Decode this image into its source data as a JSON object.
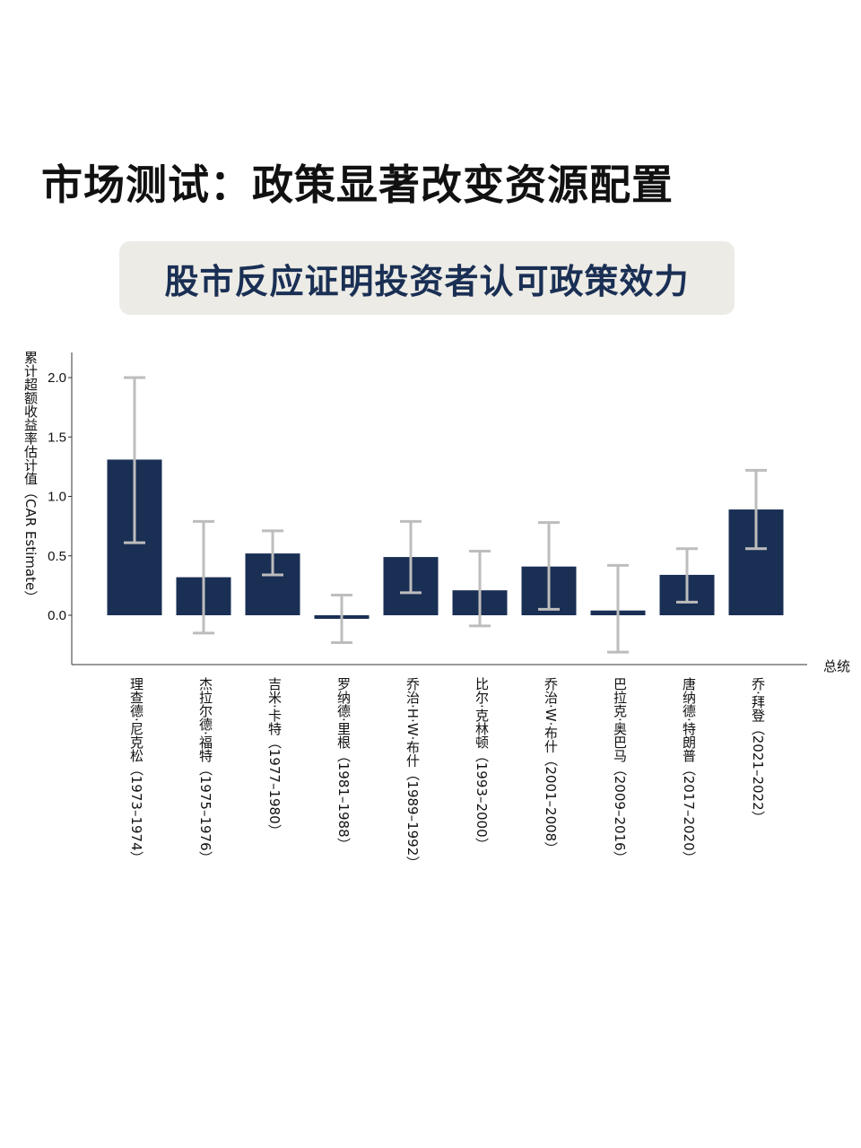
{
  "header": {
    "headline": "市场测试：政策显著改变资源配置",
    "subtitle": "股市反应证明投资者认可政策效力"
  },
  "colors": {
    "bar": "#1a2f54",
    "error_bar": "#bdbdbd",
    "subtitle_bg": "#ecebe6",
    "subtitle_text": "#1a2f54"
  },
  "chart_data": {
    "type": "bar",
    "title": "",
    "xlabel": "总统",
    "ylabel": "累计超额收益率估计值（CAR Estimate）",
    "ylim": [
      -0.42,
      2.2
    ],
    "yticks": [
      "2.0",
      "1.5",
      "1.0",
      "0.5",
      "0.0"
    ],
    "grid": false,
    "legend": "none",
    "categories": [
      "理查德·尼克松（1973–1974）",
      "杰拉尔德·福特（1975–1976）",
      "吉米·卡特（1977–1980）",
      "罗纳德·里根（1981–1988）",
      "乔治·H·W·布什（1989–1992）",
      "比尔·克林顿（1993–2000）",
      "乔治·W·布什（2001–2008）",
      "巴拉克·奥巴马（2009–2016）",
      "唐纳德·特朗普（2017–2020）",
      "乔·拜登（2021–2022）"
    ],
    "values": [
      1.31,
      0.32,
      0.52,
      -0.03,
      0.49,
      0.21,
      0.41,
      0.04,
      0.34,
      0.89
    ],
    "error_low": [
      0.61,
      -0.15,
      0.34,
      -0.23,
      0.19,
      -0.09,
      0.05,
      -0.31,
      0.11,
      0.56
    ],
    "error_high": [
      2.0,
      0.79,
      0.71,
      0.17,
      0.79,
      0.54,
      0.78,
      0.42,
      0.56,
      1.22
    ]
  }
}
